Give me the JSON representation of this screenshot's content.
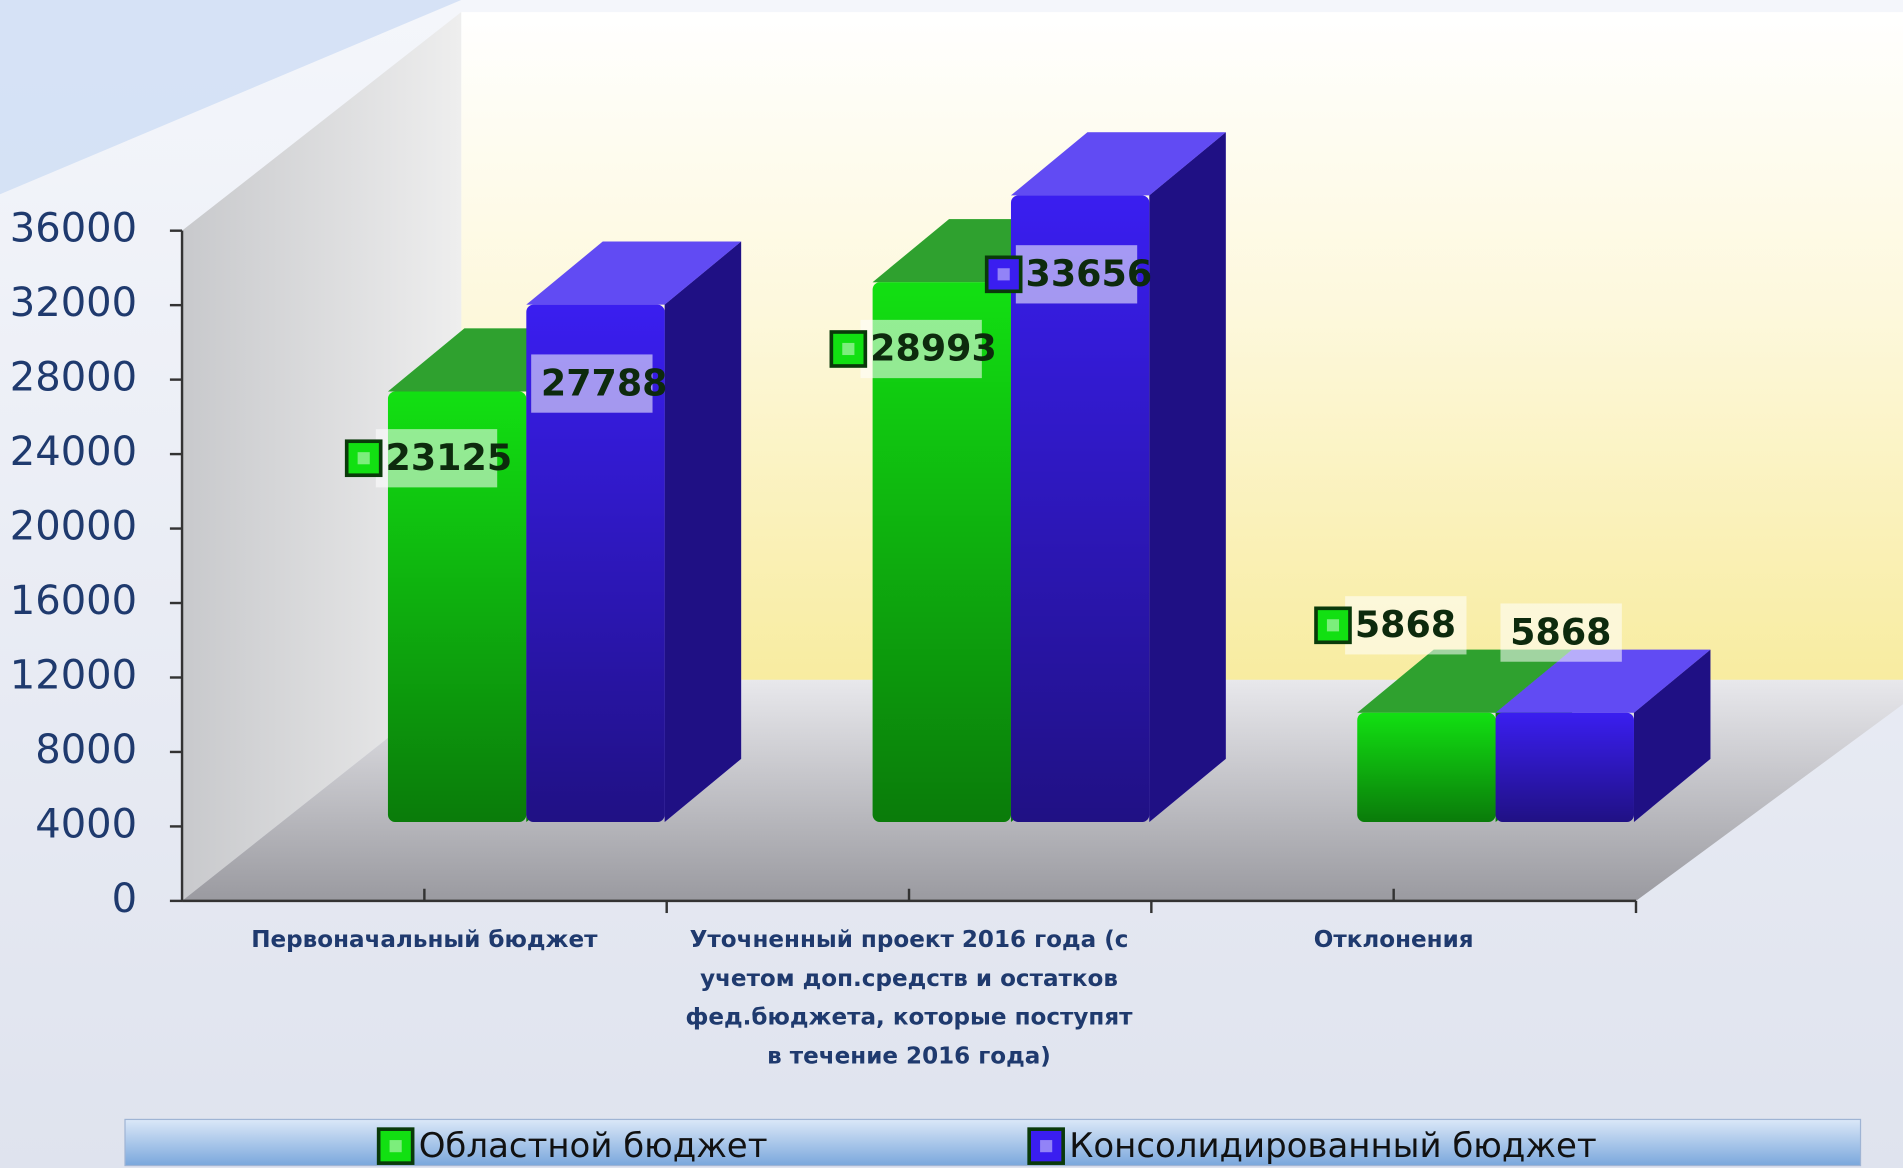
{
  "chart_data": {
    "type": "bar3d",
    "categories": [
      "Первоначальный бюджет",
      "Уточненный проект 2016 года (с учетом доп.средств и остатков фед.бюджета, которые поступят в течение 2016 года)",
      "Отклонения"
    ],
    "series": [
      {
        "name": "Областной бюджет",
        "color": "#12e012",
        "values": [
          23125,
          28993,
          5868
        ]
      },
      {
        "name": "Консолидированный бюджет",
        "color": "#3a1ef0",
        "values": [
          27788,
          33656,
          5868
        ]
      }
    ],
    "ylim": [
      0,
      36000
    ],
    "yticks": [
      0,
      4000,
      8000,
      12000,
      16000,
      20000,
      24000,
      28000,
      32000,
      36000
    ]
  }
}
